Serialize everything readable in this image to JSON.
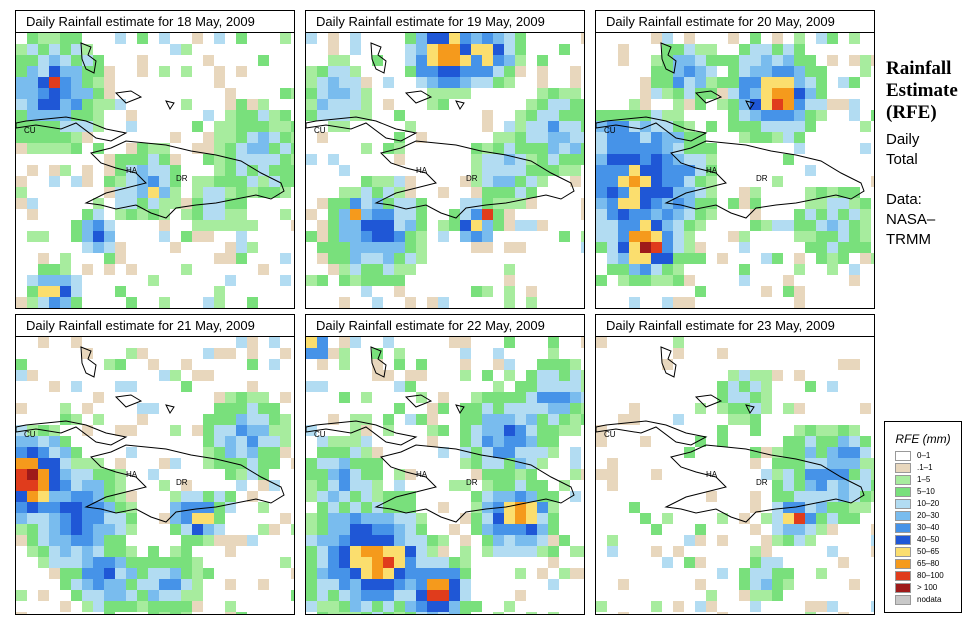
{
  "panels": [
    {
      "title": "Daily Rainfall estimate for  18 May, 2009"
    },
    {
      "title": "Daily Rainfall estimate for  19 May, 2009"
    },
    {
      "title": "Daily Rainfall estimate for  20 May, 2009"
    },
    {
      "title": "Daily Rainfall estimate for  21 May, 2009"
    },
    {
      "title": "Daily Rainfall estimate for  22 May, 2009"
    },
    {
      "title": "Daily Rainfall estimate for  23 May, 2009"
    }
  ],
  "map_labels": {
    "cuba": "CU",
    "haiti": "HA",
    "dominican_republic": "DR"
  },
  "sidebar": {
    "title_line1": "Rainfall",
    "title_line2": "Estimate",
    "title_line3": "(RFE)",
    "daily_line1": "Daily",
    "daily_line2": "Total",
    "data_line1": "Data:",
    "data_line2": "NASA–",
    "data_line3": "TRMM"
  },
  "legend": {
    "title": "RFE (mm)",
    "items": [
      {
        "label": "0–1",
        "color": "#ffffff"
      },
      {
        "label": ".1–1",
        "color": "#e8d7bd"
      },
      {
        "label": "1–5",
        "color": "#a7ec9e"
      },
      {
        "label": "5–10",
        "color": "#79e07c"
      },
      {
        "label": "10–20",
        "color": "#b2dcf2"
      },
      {
        "label": "20–30",
        "color": "#79bcee"
      },
      {
        "label": "30–40",
        "color": "#4693e8"
      },
      {
        "label": "40–50",
        "color": "#1f57d6"
      },
      {
        "label": "50–65",
        "color": "#fbde6e"
      },
      {
        "label": "65–80",
        "color": "#f59a1c"
      },
      {
        "label": "80–100",
        "color": "#e03c1c"
      },
      {
        "label": "> 100",
        "color": "#9e1a1a"
      },
      {
        "label": "nodata",
        "color": "#c8c8c8"
      }
    ]
  }
}
